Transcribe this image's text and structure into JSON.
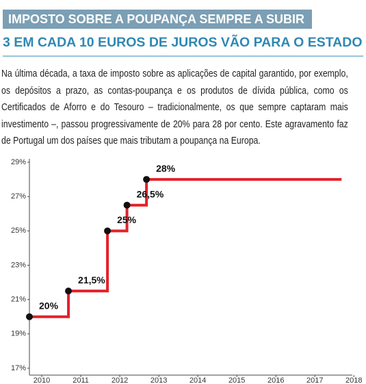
{
  "chart_data": {
    "type": "line",
    "title": "IMPOSTO SOBRE A POUPANÇA SEMPRE A SUBIR",
    "subtitle": "3 EM CADA 10 EUROS DE JUROS VÃO PARA O ESTADO",
    "description": "Na última década, a taxa de imposto sobre as aplicações de capital garantido, por exemplo, os depósitos a prazo, as contas-poupança e os produtos de dívida pública, como os Certificados de Aforro e do Tesouro – tradicionalmente, os que sempre captaram mais investimento –, passou progressivamente de 20% para 28 por cento. Este agravamento faz de Portugal um dos países que mais tributam a poupança na Europa.",
    "x": [
      2010,
      2011,
      2012,
      2012.5,
      2013,
      2018
    ],
    "series": [
      {
        "color": "#e5202a",
        "values": [
          20,
          21.5,
          25,
          26.5,
          28,
          28
        ],
        "value_labels": [
          "20%",
          "21,5%",
          "25%",
          "26,5%",
          "28%",
          null
        ]
      }
    ],
    "step": "after",
    "xlim": [
      2010,
      2018.1
    ],
    "xticks": [
      2010,
      2011,
      2012,
      2013,
      2014,
      2015,
      2016,
      2017,
      2018
    ],
    "ylim": [
      16.6,
      29
    ],
    "yticks": [
      {
        "value": 17,
        "label": "17%"
      },
      {
        "value": 19,
        "label": "19%"
      },
      {
        "value": 21,
        "label": "21%"
      },
      {
        "value": 23,
        "label": "23%"
      },
      {
        "value": 25,
        "label": "25%"
      },
      {
        "value": 27,
        "label": "27%"
      },
      {
        "value": 29,
        "label": "29%"
      }
    ],
    "grid": false
  }
}
